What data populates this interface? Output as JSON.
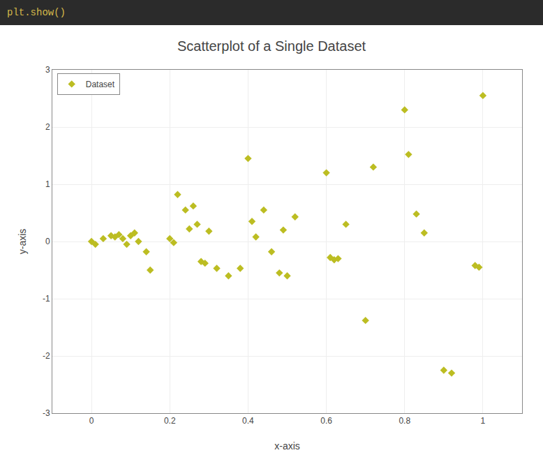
{
  "chart_data": {
    "type": "scatter",
    "title": "Scatterplot of a Single Dataset",
    "annotations": [
      "plt.show()"
    ],
    "xlabel": "x-axis",
    "ylabel": "y-axis",
    "series": [
      {
        "name": "Dataset",
        "color": "#bcbd22",
        "marker": "diamond",
        "x": [
          0.0,
          0.01,
          0.03,
          0.05,
          0.06,
          0.07,
          0.08,
          0.09,
          0.1,
          0.11,
          0.12,
          0.14,
          0.15,
          0.2,
          0.21,
          0.22,
          0.24,
          0.25,
          0.26,
          0.27,
          0.28,
          0.29,
          0.3,
          0.32,
          0.35,
          0.38,
          0.4,
          0.41,
          0.42,
          0.44,
          0.46,
          0.48,
          0.49,
          0.5,
          0.52,
          0.6,
          0.61,
          0.62,
          0.63,
          0.65,
          0.7,
          0.72,
          0.8,
          0.81,
          0.83,
          0.85,
          0.9,
          0.92,
          0.98,
          0.99,
          1.0
        ],
        "values": [
          0.0,
          -0.05,
          0.05,
          0.1,
          0.08,
          0.12,
          0.05,
          -0.05,
          0.1,
          0.15,
          0.0,
          -0.18,
          -0.5,
          0.05,
          -0.02,
          0.82,
          0.55,
          0.22,
          0.62,
          0.3,
          -0.35,
          -0.38,
          0.18,
          -0.47,
          -0.6,
          -0.47,
          1.45,
          0.35,
          0.08,
          0.55,
          -0.18,
          -0.55,
          0.2,
          -0.6,
          0.43,
          1.2,
          -0.28,
          -0.32,
          -0.3,
          0.3,
          -1.38,
          1.3,
          2.3,
          1.52,
          0.48,
          0.15,
          -2.25,
          -2.3,
          -0.42,
          -0.45,
          2.55
        ]
      }
    ],
    "xlim": [
      -0.1,
      1.1
    ],
    "xticks": [
      0,
      0.2,
      0.4,
      0.6,
      0.8,
      1
    ],
    "ylim": [
      -3,
      3
    ],
    "yticks": [
      -3,
      -2,
      -1,
      0,
      1,
      2,
      3
    ],
    "grid": true,
    "legend": "upper left"
  }
}
